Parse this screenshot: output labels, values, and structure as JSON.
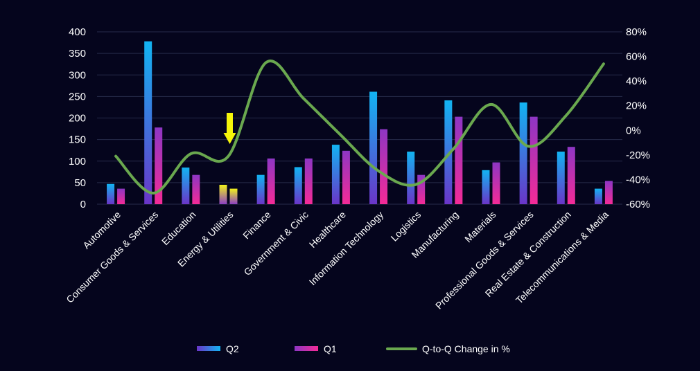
{
  "chart_data": {
    "type": "bar",
    "categories": [
      "Automotive",
      "Consumer Goods & Services",
      "Education",
      "Energy & Utilities",
      "Finance",
      "Government & Civic",
      "Healthcare",
      "Information Technology",
      "Logistics",
      "Manufacturing",
      "Materials",
      "Professional Goods & Services",
      "Real Estate & Construction",
      "Telecommunications & Media"
    ],
    "series": [
      {
        "name": "Q2",
        "type": "bar",
        "axis": "left",
        "values": [
          47,
          378,
          85,
          45,
          68,
          86,
          138,
          261,
          122,
          241,
          79,
          236,
          122,
          36
        ],
        "color_top": "#12b4f2",
        "color_bottom": "#6a35c8"
      },
      {
        "name": "Q1",
        "type": "bar",
        "axis": "left",
        "values": [
          36,
          178,
          68,
          36,
          106,
          106,
          124,
          174,
          68,
          203,
          97,
          203,
          133,
          54
        ],
        "color_top": "#8e36c4",
        "color_bottom": "#f42b97"
      },
      {
        "name": "Q-to-Q Change in %",
        "type": "line",
        "axis": "right",
        "values": [
          -21,
          -51,
          -19,
          -21,
          55,
          26,
          -4,
          -33,
          -44,
          -15,
          21,
          -13,
          12,
          54
        ],
        "color": "#6aa84f",
        "smooth": true
      }
    ],
    "y_left": {
      "ylim": [
        0,
        400
      ],
      "ticks": [
        0,
        50,
        100,
        150,
        200,
        250,
        300,
        350,
        400
      ]
    },
    "y_right": {
      "ylim": [
        -60,
        80
      ],
      "ticks": [
        -60,
        -40,
        -20,
        0,
        20,
        40,
        60,
        80
      ],
      "tick_labels": [
        "-60%",
        "-40%",
        "-20%",
        "0%",
        "20%",
        "40%",
        "60%",
        "80%"
      ]
    },
    "highlight": {
      "category_index": 3,
      "bar_color_top": "#f2f21b",
      "bar_color_bottom": "#8c3fc4",
      "arrow_color": "#f5f50a"
    },
    "legend": {
      "placement": "bottom",
      "entries": [
        "Q2",
        "Q1",
        "Q-to-Q Change in %"
      ]
    },
    "grid": true,
    "background": "#05051d",
    "grid_color": "#262b4a",
    "text_color": "#ffffff"
  }
}
